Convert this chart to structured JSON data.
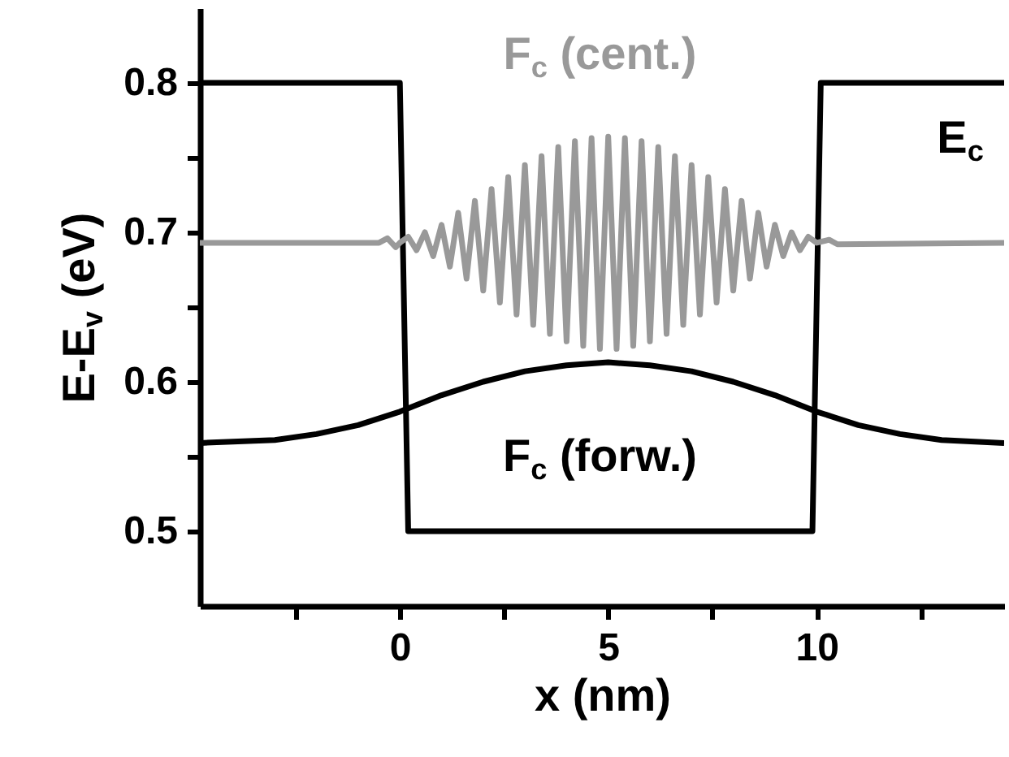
{
  "chart_data": {
    "type": "line",
    "xlabel": "x (nm)",
    "ylabel": "E-E$_{v}$ (eV)",
    "xlim": [
      -4.8,
      14.5
    ],
    "xticks": [
      {
        "value": -2.5,
        "label": null
      },
      0,
      {
        "value": 2.5,
        "label": null
      },
      5,
      {
        "value": 7.5,
        "label": null
      },
      10,
      {
        "value": 12.5,
        "label": null
      }
    ],
    "ylim": [
      0.45,
      0.85
    ],
    "yticks": [
      0.5,
      {
        "value": 0.55,
        "label": null
      },
      0.6,
      {
        "value": 0.65,
        "label": null
      },
      0.7,
      {
        "value": 0.75,
        "label": null
      },
      0.8
    ],
    "series": [
      {
        "name": "E$_{c}$",
        "color": "#000000",
        "x": [
          -4.8,
          0,
          0.2,
          9.9,
          10.1,
          14.5
        ],
        "values": [
          0.8,
          0.8,
          0.5,
          0.5,
          0.8,
          0.8
        ]
      },
      {
        "name": "F$_{c}$ (cent.)",
        "color": "#999999",
        "x": [
          -4.8,
          -0.5,
          -0.3,
          -0.1,
          0,
          0.2,
          0.4,
          0.6,
          0.8,
          1.0,
          1.2,
          1.4,
          1.6,
          1.8,
          2.0,
          2.2,
          2.4,
          2.6,
          2.8,
          3.0,
          3.2,
          3.4,
          3.6,
          3.8,
          4.0,
          4.2,
          4.4,
          4.6,
          4.8,
          5.0,
          5.2,
          5.4,
          5.6,
          5.8,
          6.0,
          6.2,
          6.4,
          6.6,
          6.8,
          7.0,
          7.2,
          7.4,
          7.6,
          7.8,
          8.0,
          8.2,
          8.4,
          8.6,
          8.8,
          9.0,
          9.2,
          9.4,
          9.6,
          9.8,
          10.0,
          10.3,
          10.5,
          14.5
        ],
        "values": [
          0.693,
          0.693,
          0.696,
          0.69,
          0.693,
          0.697,
          0.688,
          0.7,
          0.684,
          0.705,
          0.677,
          0.713,
          0.669,
          0.721,
          0.661,
          0.729,
          0.653,
          0.737,
          0.645,
          0.745,
          0.638,
          0.751,
          0.632,
          0.757,
          0.627,
          0.761,
          0.624,
          0.763,
          0.622,
          0.764,
          0.622,
          0.763,
          0.624,
          0.761,
          0.627,
          0.757,
          0.632,
          0.751,
          0.638,
          0.745,
          0.645,
          0.737,
          0.653,
          0.729,
          0.661,
          0.721,
          0.669,
          0.713,
          0.677,
          0.705,
          0.684,
          0.7,
          0.688,
          0.697,
          0.693,
          0.695,
          0.692,
          0.693
        ]
      },
      {
        "name": "F$_{c}$ (forw.)",
        "color": "#000000",
        "x": [
          -4.8,
          -3,
          -2,
          -1,
          0,
          1,
          2,
          3,
          4,
          5,
          6,
          7,
          8,
          9,
          10,
          11,
          12,
          13,
          14.5
        ],
        "values": [
          0.559,
          0.561,
          0.565,
          0.571,
          0.58,
          0.591,
          0.6,
          0.607,
          0.611,
          0.613,
          0.611,
          0.607,
          0.6,
          0.591,
          0.58,
          0.571,
          0.565,
          0.561,
          0.559
        ]
      }
    ]
  }
}
